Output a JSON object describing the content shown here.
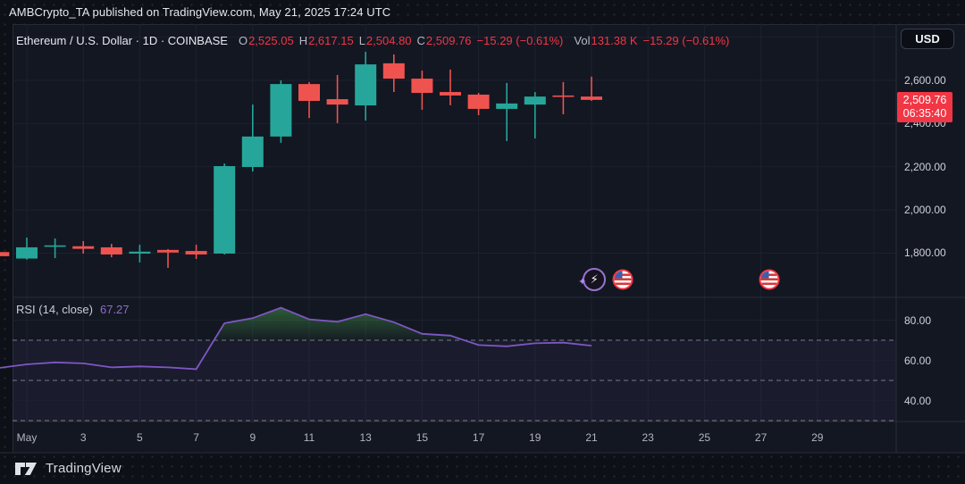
{
  "attribution": "AMBCrypto_TA published on TradingView.com, May 21, 2025 17:24 UTC",
  "currency_button": "USD",
  "legend": {
    "symbol_line": "Ethereum / U.S. Dollar · 1D · COINBASE",
    "o_label": "O",
    "o_value": "2,525.05",
    "h_label": "H",
    "h_value": "2,617.15",
    "l_label": "L",
    "l_value": "2,504.80",
    "c_label": "C",
    "c_value": "2,509.76",
    "change": "−15.29 (−0.61%)",
    "vol_label": "Vol",
    "vol_value": "131.38 K",
    "vol_change": "−15.29 (−0.61%)"
  },
  "price_axis": {
    "labels": [
      "2,600.00",
      "2,400.00",
      "2,200.00",
      "2,000.00",
      "1,800.00"
    ],
    "values": [
      2600,
      2400,
      2200,
      2000,
      1800
    ],
    "badge": {
      "price": "2,509.76",
      "countdown": "06:35:40"
    }
  },
  "rsi_pane": {
    "title": "RSI (14, close)",
    "value": "67.27",
    "axis_labels": [
      "80.00",
      "60.00",
      "40.00"
    ],
    "axis_values": [
      80,
      60,
      40
    ],
    "dashed_levels": [
      70,
      50,
      30
    ]
  },
  "time_axis": [
    {
      "label": "May",
      "day": 1
    },
    {
      "label": "3",
      "day": 3
    },
    {
      "label": "5",
      "day": 5
    },
    {
      "label": "7",
      "day": 7
    },
    {
      "label": "9",
      "day": 9
    },
    {
      "label": "11",
      "day": 11
    },
    {
      "label": "13",
      "day": 13
    },
    {
      "label": "15",
      "day": 15
    },
    {
      "label": "17",
      "day": 17
    },
    {
      "label": "19",
      "day": 19
    },
    {
      "label": "21",
      "day": 21
    },
    {
      "label": "23",
      "day": 23
    },
    {
      "label": "25",
      "day": 25
    },
    {
      "label": "27",
      "day": 27
    },
    {
      "label": "29",
      "day": 29
    }
  ],
  "gridline_days": [
    1,
    3,
    5,
    7,
    9,
    11,
    13,
    15,
    17,
    19,
    21,
    23,
    25,
    27,
    29,
    31
  ],
  "price_gridlines": [
    2800,
    2600,
    2400,
    2200,
    2000,
    1800
  ],
  "markers": [
    {
      "name": "lightning-event-icon",
      "day": 21.1
    },
    {
      "name": "us-flag-event-icon",
      "day": 22.1
    },
    {
      "name": "us-flag-event-icon",
      "day": 27.3
    }
  ],
  "footer": {
    "brand": "TradingView"
  },
  "colors": {
    "up": "#26a69a",
    "down": "#ef5350",
    "text_down": "#f23645",
    "rsi_line": "#7e57c2",
    "rsi_band_fill": "rgba(126,87,194,0.07)",
    "rsi_overbought_fill": "#4caf50",
    "grid": "#1c2130",
    "dashed": "#787b86",
    "separator": "#2a2e39",
    "badge_bg": "#f23645",
    "panel_bg": "#131722"
  },
  "chart_data": {
    "type": "candlestick+rsi",
    "title": "Ethereum / U.S. Dollar",
    "interval": "1D",
    "exchange": "COINBASE",
    "quote_currency": "USD",
    "price_axis_range_visible": [
      1757,
      2800
    ],
    "rsi_settings": "RSI (14, close)",
    "rsi_last": 67.27,
    "candles": [
      {
        "date": "Apr 30",
        "day": 0,
        "open": 1805,
        "high": 1806,
        "low": 1785,
        "close": 1786
      },
      {
        "date": "May 1",
        "day": 1,
        "open": 1775,
        "high": 1872,
        "low": 1770,
        "close": 1827
      },
      {
        "date": "May 2",
        "day": 2,
        "open": 1830,
        "high": 1868,
        "low": 1777,
        "close": 1836
      },
      {
        "date": "May 3",
        "day": 3,
        "open": 1832,
        "high": 1856,
        "low": 1798,
        "close": 1820
      },
      {
        "date": "May 4",
        "day": 4,
        "open": 1827,
        "high": 1843,
        "low": 1781,
        "close": 1794
      },
      {
        "date": "May 5",
        "day": 5,
        "open": 1798,
        "high": 1839,
        "low": 1757,
        "close": 1807
      },
      {
        "date": "May 6",
        "day": 6,
        "open": 1815,
        "high": 1819,
        "low": 1732,
        "close": 1803
      },
      {
        "date": "May 7",
        "day": 7,
        "open": 1810,
        "high": 1839,
        "low": 1773,
        "close": 1794
      },
      {
        "date": "May 8",
        "day": 8,
        "open": 1798,
        "high": 2215,
        "low": 1794,
        "close": 2203
      },
      {
        "date": "May 9",
        "day": 9,
        "open": 2199,
        "high": 2488,
        "low": 2178,
        "close": 2340
      },
      {
        "date": "May 10",
        "day": 10,
        "open": 2340,
        "high": 2600,
        "low": 2311,
        "close": 2583
      },
      {
        "date": "May 11",
        "day": 11,
        "open": 2583,
        "high": 2592,
        "low": 2426,
        "close": 2505
      },
      {
        "date": "May 12",
        "day": 12,
        "open": 2513,
        "high": 2625,
        "low": 2402,
        "close": 2488
      },
      {
        "date": "May 13",
        "day": 13,
        "open": 2484,
        "high": 2732,
        "low": 2414,
        "close": 2674
      },
      {
        "date": "May 14",
        "day": 14,
        "open": 2679,
        "high": 2720,
        "low": 2546,
        "close": 2608
      },
      {
        "date": "May 15",
        "day": 15,
        "open": 2608,
        "high": 2645,
        "low": 2464,
        "close": 2542
      },
      {
        "date": "May 16",
        "day": 16,
        "open": 2546,
        "high": 2650,
        "low": 2485,
        "close": 2530
      },
      {
        "date": "May 17",
        "day": 17,
        "open": 2534,
        "high": 2542,
        "low": 2439,
        "close": 2468
      },
      {
        "date": "May 18",
        "day": 18,
        "open": 2468,
        "high": 2588,
        "low": 2319,
        "close": 2493
      },
      {
        "date": "May 19",
        "day": 19,
        "open": 2488,
        "high": 2546,
        "low": 2331,
        "close": 2525
      },
      {
        "date": "May 20",
        "day": 20,
        "open": 2530,
        "high": 2592,
        "low": 2443,
        "close": 2524
      },
      {
        "date": "May 21",
        "day": 21,
        "open": 2525.05,
        "high": 2617.15,
        "low": 2504.8,
        "close": 2509.76
      }
    ],
    "rsi_series": {
      "days": [
        0,
        1,
        2,
        3,
        4,
        5,
        6,
        7,
        8,
        9,
        10,
        11,
        12,
        13,
        14,
        15,
        16,
        17,
        18,
        19,
        20,
        21
      ],
      "values": [
        56.2,
        58,
        59,
        58.5,
        56.5,
        57,
        56.5,
        55.6,
        78.5,
        81,
        86.2,
        80.4,
        79.2,
        83,
        79,
        73.2,
        72.3,
        67.6,
        67,
        68.5,
        68.8,
        67.27
      ]
    }
  }
}
